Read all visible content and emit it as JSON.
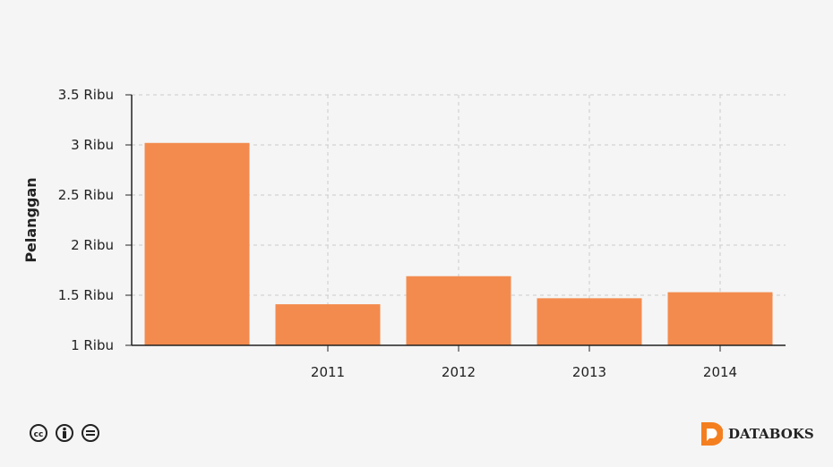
{
  "chart_data": {
    "type": "bar",
    "title": "",
    "xlabel": "",
    "ylabel": "Pelanggan",
    "categories": [
      "",
      "2011",
      "2012",
      "2013",
      "2014"
    ],
    "values": [
      3020,
      1410,
      1690,
      1470,
      1530
    ],
    "ylim": [
      1000,
      3500
    ],
    "yticks": [
      1000,
      1500,
      2000,
      2500,
      3000,
      3500
    ],
    "ytick_labels": [
      "1 Ribu",
      "1.5 Ribu",
      "2 Ribu",
      "2.5 Ribu",
      "3 Ribu",
      "3.5 Ribu"
    ],
    "grid": true,
    "bar_color": "#f38b4e"
  },
  "footer": {
    "license_icons": [
      "cc-icon",
      "by-icon",
      "nd-icon"
    ],
    "brand": "DATABOKS",
    "brand_color": "#f47f20"
  }
}
